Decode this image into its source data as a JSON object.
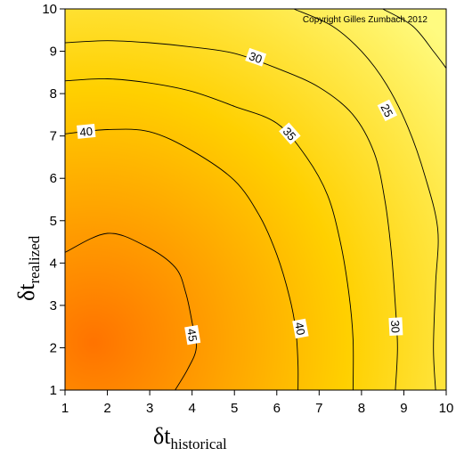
{
  "chart_data": {
    "type": "heatmap",
    "subtype": "filled-contour",
    "copyright": "Copyright Gilles Zumbach 2012",
    "xlabel": {
      "main": "δt",
      "subscript": "historical"
    },
    "ylabel": {
      "main": "δt",
      "subscript": "realized"
    },
    "xlim": [
      1,
      10
    ],
    "ylim": [
      1,
      10
    ],
    "x_ticks": [
      1,
      2,
      3,
      4,
      5,
      6,
      7,
      8,
      9,
      10
    ],
    "y_ticks": [
      1,
      2,
      3,
      4,
      5,
      6,
      7,
      8,
      9,
      10
    ],
    "grid": false,
    "colormap": {
      "low": "#fffb80",
      "mid": "#ffd000",
      "high": "#ff7300"
    },
    "contours": [
      {
        "level": 45,
        "label": "45",
        "points": [
          [
            1.0,
            4.25
          ],
          [
            2.0,
            4.7
          ],
          [
            2.9,
            4.4
          ],
          [
            3.6,
            3.9
          ],
          [
            3.85,
            3.3
          ],
          [
            4.0,
            2.6
          ],
          [
            4.1,
            2.0
          ],
          [
            3.9,
            1.5
          ],
          [
            3.6,
            1.0
          ]
        ],
        "label_at": [
          4.0,
          2.3
        ]
      },
      {
        "level": 40,
        "label": "40",
        "points": [
          [
            1.0,
            7.05
          ],
          [
            2.0,
            7.15
          ],
          [
            3.0,
            7.1
          ],
          [
            4.0,
            6.65
          ],
          [
            5.0,
            5.95
          ],
          [
            5.6,
            5.1
          ],
          [
            6.0,
            4.2
          ],
          [
            6.3,
            3.2
          ],
          [
            6.45,
            2.4
          ],
          [
            6.5,
            1.6
          ],
          [
            6.5,
            1.0
          ]
        ],
        "label_at": [
          6.55,
          2.45
        ],
        "label_at_2": [
          1.5,
          7.1
        ]
      },
      {
        "level": 35,
        "label": "35",
        "points": [
          [
            1.0,
            8.3
          ],
          [
            2.0,
            8.35
          ],
          [
            3.0,
            8.25
          ],
          [
            4.0,
            8.05
          ],
          [
            5.0,
            7.7
          ],
          [
            6.0,
            7.3
          ],
          [
            6.7,
            6.5
          ],
          [
            7.2,
            5.6
          ],
          [
            7.5,
            4.5
          ],
          [
            7.7,
            3.3
          ],
          [
            7.8,
            2.2
          ],
          [
            7.8,
            1.0
          ]
        ],
        "label_at": [
          6.3,
          7.05
        ]
      },
      {
        "level": 30,
        "label": "30",
        "points": [
          [
            1.0,
            9.2
          ],
          [
            2.0,
            9.25
          ],
          [
            3.0,
            9.2
          ],
          [
            4.0,
            9.1
          ],
          [
            5.0,
            8.95
          ],
          [
            6.0,
            8.6
          ],
          [
            7.0,
            8.15
          ],
          [
            7.8,
            7.5
          ],
          [
            8.3,
            6.6
          ],
          [
            8.55,
            5.5
          ],
          [
            8.7,
            4.3
          ],
          [
            8.8,
            3.0
          ],
          [
            8.85,
            2.0
          ],
          [
            8.8,
            1.0
          ]
        ],
        "label_at": [
          5.5,
          8.85
        ],
        "label_at_2": [
          8.8,
          2.5
        ]
      },
      {
        "level": 25,
        "label": "25",
        "points": [
          [
            6.4,
            10.0
          ],
          [
            7.3,
            9.6
          ],
          [
            8.0,
            9.0
          ],
          [
            8.6,
            8.2
          ],
          [
            9.1,
            7.2
          ],
          [
            9.5,
            6.05
          ],
          [
            9.8,
            4.8
          ],
          [
            9.75,
            3.5
          ],
          [
            9.7,
            2.0
          ],
          [
            9.75,
            1.0
          ]
        ],
        "label_at": [
          8.6,
          7.6
        ]
      },
      {
        "level": 20,
        "label": "",
        "points": [
          [
            8.5,
            10.0
          ],
          [
            9.2,
            9.6
          ],
          [
            9.7,
            9.0
          ],
          [
            10.0,
            8.6
          ]
        ]
      }
    ]
  }
}
